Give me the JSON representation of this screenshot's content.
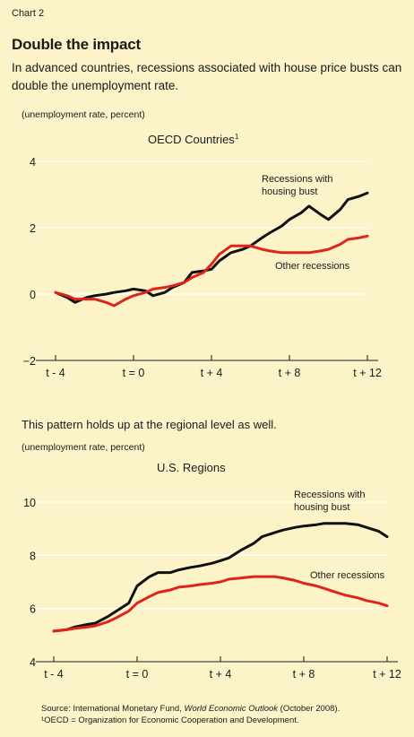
{
  "header": {
    "chart_label": "Chart 2",
    "title": "Double the impact",
    "subtitle": "In advanced countries, recessions associated with house price busts can double the unemployment rate."
  },
  "charts_text": {
    "unit1": "(unemployment rate, percent)",
    "section2": "This pattern holds up at the regional level as well.",
    "unit2": "(unemployment rate, percent)"
  },
  "footer": {
    "source_prefix": "Source:  International Monetary Fund, ",
    "source_italic": "World Economic Outlook",
    "source_suffix": " (October 2008).",
    "footnote": "¹OECD = Organization for Economic Cooperation and Development."
  },
  "colors": {
    "background": "#fdf3c8",
    "housing": "#111111",
    "other": "#e0241b",
    "grid": "#ffffff"
  },
  "chart_data": [
    {
      "type": "line",
      "title": "OECD Countries",
      "title_sup": "1",
      "ylabel": "(unemployment rate, percent)",
      "ylim": [
        -2,
        4
      ],
      "yticks": [
        -2,
        0,
        2,
        4
      ],
      "xlim": [
        -4,
        12
      ],
      "xticks": [
        -4,
        0,
        4,
        8,
        12
      ],
      "xtick_labels": [
        "t - 4",
        "t = 0",
        "t + 4",
        "t + 8",
        "t + 12"
      ],
      "grid": true,
      "x": [
        -4,
        -3.4,
        -3,
        -2.4,
        -2,
        -1.4,
        -1,
        -0.4,
        0,
        0.6,
        1,
        1.6,
        2,
        2.6,
        3,
        3.6,
        4,
        4.4,
        5,
        5.6,
        6,
        6.6,
        7,
        7.6,
        8,
        8.6,
        9,
        9.6,
        10,
        10.6,
        11,
        11.6,
        12
      ],
      "series": [
        {
          "name": "Recessions with housing bust",
          "values": [
            0.05,
            -0.1,
            -0.25,
            -0.1,
            -0.05,
            0.0,
            0.05,
            0.1,
            0.15,
            0.1,
            -0.05,
            0.05,
            0.2,
            0.35,
            0.65,
            0.7,
            0.75,
            1.0,
            1.25,
            1.35,
            1.45,
            1.7,
            1.85,
            2.05,
            2.25,
            2.45,
            2.65,
            2.4,
            2.25,
            2.55,
            2.85,
            2.95,
            3.05
          ]
        },
        {
          "name": "Other recessions",
          "values": [
            0.05,
            -0.05,
            -0.15,
            -0.15,
            -0.15,
            -0.25,
            -0.35,
            -0.15,
            -0.05,
            0.05,
            0.15,
            0.2,
            0.25,
            0.35,
            0.5,
            0.65,
            0.9,
            1.2,
            1.45,
            1.45,
            1.45,
            1.35,
            1.3,
            1.25,
            1.25,
            1.25,
            1.25,
            1.3,
            1.35,
            1.5,
            1.65,
            1.7,
            1.75
          ]
        }
      ],
      "annotations": [
        {
          "series": 0,
          "lines": [
            "Recessions with",
            "housing bust"
          ]
        },
        {
          "series": 1,
          "lines": [
            "Other recessions"
          ]
        }
      ]
    },
    {
      "type": "line",
      "title": "U.S. Regions",
      "ylabel": "(unemployment rate, percent)",
      "ylim": [
        4,
        10
      ],
      "yticks": [
        4,
        6,
        8,
        10
      ],
      "xlim": [
        -4,
        12
      ],
      "xticks": [
        -4,
        0,
        4,
        8,
        12
      ],
      "xtick_labels": [
        "t - 4",
        "t = 0",
        "t + 4",
        "t + 8",
        "t + 12"
      ],
      "grid": true,
      "x": [
        -4,
        -3.4,
        -3,
        -2.4,
        -2,
        -1.4,
        -1,
        -0.4,
        0,
        0.6,
        1,
        1.6,
        2,
        2.6,
        3,
        3.6,
        4,
        4.4,
        5,
        5.6,
        6,
        6.6,
        7,
        7.6,
        8,
        8.6,
        9,
        9.6,
        10,
        10.6,
        11,
        11.6,
        12
      ],
      "series": [
        {
          "name": "Recessions with housing bust",
          "values": [
            5.15,
            5.2,
            5.3,
            5.4,
            5.45,
            5.7,
            5.9,
            6.2,
            6.85,
            7.2,
            7.35,
            7.35,
            7.45,
            7.55,
            7.6,
            7.7,
            7.8,
            7.9,
            8.2,
            8.45,
            8.7,
            8.85,
            8.95,
            9.05,
            9.1,
            9.15,
            9.2,
            9.2,
            9.2,
            9.15,
            9.05,
            8.9,
            8.7
          ]
        },
        {
          "name": "Other recessions",
          "values": [
            5.15,
            5.2,
            5.25,
            5.3,
            5.35,
            5.5,
            5.65,
            5.9,
            6.2,
            6.45,
            6.6,
            6.7,
            6.8,
            6.85,
            6.9,
            6.95,
            7.0,
            7.1,
            7.15,
            7.2,
            7.2,
            7.2,
            7.15,
            7.05,
            6.95,
            6.85,
            6.75,
            6.6,
            6.5,
            6.4,
            6.3,
            6.2,
            6.1
          ]
        }
      ],
      "annotations": [
        {
          "series": 0,
          "lines": [
            "Recessions with",
            "housing bust"
          ]
        },
        {
          "series": 1,
          "lines": [
            "Other recessions"
          ]
        }
      ]
    }
  ]
}
